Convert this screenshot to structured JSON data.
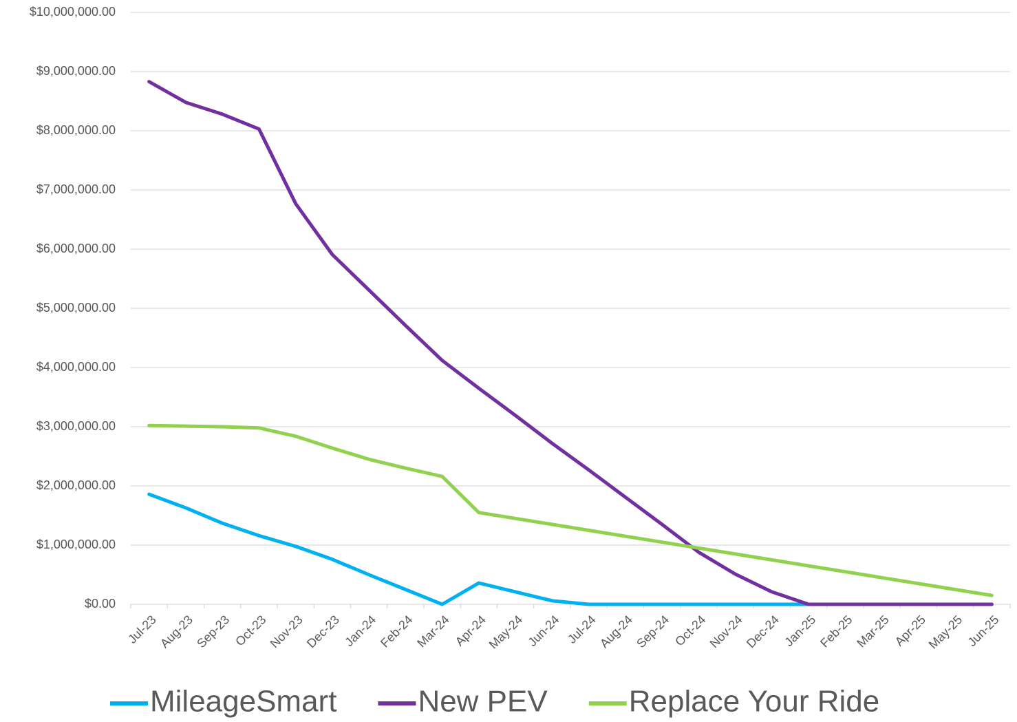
{
  "chart_data": {
    "type": "line",
    "categories": [
      "Jul-23",
      "Aug-23",
      "Sep-23",
      "Oct-23",
      "Nov-23",
      "Dec-23",
      "Jan-24",
      "Feb-24",
      "Mar-24",
      "Apr-24",
      "May-24",
      "Jun-24",
      "Jul-24",
      "Aug-24",
      "Sep-24",
      "Oct-24",
      "Nov-24",
      "Dec-24",
      "Jan-25",
      "Feb-25",
      "Mar-25",
      "Apr-25",
      "May-25",
      "Jun-25"
    ],
    "series": [
      {
        "name": "MileageSmart",
        "color": "#00b0f0",
        "values": [
          1860000,
          1630000,
          1370000,
          1160000,
          980000,
          760000,
          500000,
          250000,
          0,
          360000,
          210000,
          60000,
          0,
          0,
          0,
          0,
          0,
          0,
          0,
          0,
          0,
          0,
          0,
          0
        ]
      },
      {
        "name": "New PEV",
        "color": "#7030a0",
        "values": [
          8830000,
          8480000,
          8280000,
          8030000,
          6770000,
          5910000,
          5310000,
          4710000,
          4120000,
          3650000,
          3190000,
          2720000,
          2270000,
          1810000,
          1350000,
          880000,
          510000,
          210000,
          0,
          0,
          0,
          0,
          0,
          0
        ]
      },
      {
        "name": "Replace Your Ride",
        "color": "#92d050",
        "values": [
          3020000,
          3010000,
          3000000,
          2980000,
          2840000,
          2640000,
          2450000,
          2300000,
          2160000,
          1550000,
          1450000,
          1350000,
          1250000,
          1150000,
          1050000,
          950000,
          850000,
          750000,
          650000,
          550000,
          450000,
          350000,
          250000,
          150000
        ]
      }
    ],
    "ylim": [
      0,
      10000000
    ],
    "yticks": [
      {
        "value": 0,
        "label": "$0.00"
      },
      {
        "value": 1000000,
        "label": "$1,000,000.00"
      },
      {
        "value": 2000000,
        "label": "$2,000,000.00"
      },
      {
        "value": 3000000,
        "label": "$3,000,000.00"
      },
      {
        "value": 4000000,
        "label": "$4,000,000.00"
      },
      {
        "value": 5000000,
        "label": "$5,000,000.00"
      },
      {
        "value": 6000000,
        "label": "$6,000,000.00"
      },
      {
        "value": 7000000,
        "label": "$7,000,000.00"
      },
      {
        "value": 8000000,
        "label": "$8,000,000.00"
      },
      {
        "value": 9000000,
        "label": "$9,000,000.00"
      },
      {
        "value": 10000000,
        "label": "$10,000,000.00"
      }
    ],
    "grid": true,
    "legend": "bottom"
  }
}
